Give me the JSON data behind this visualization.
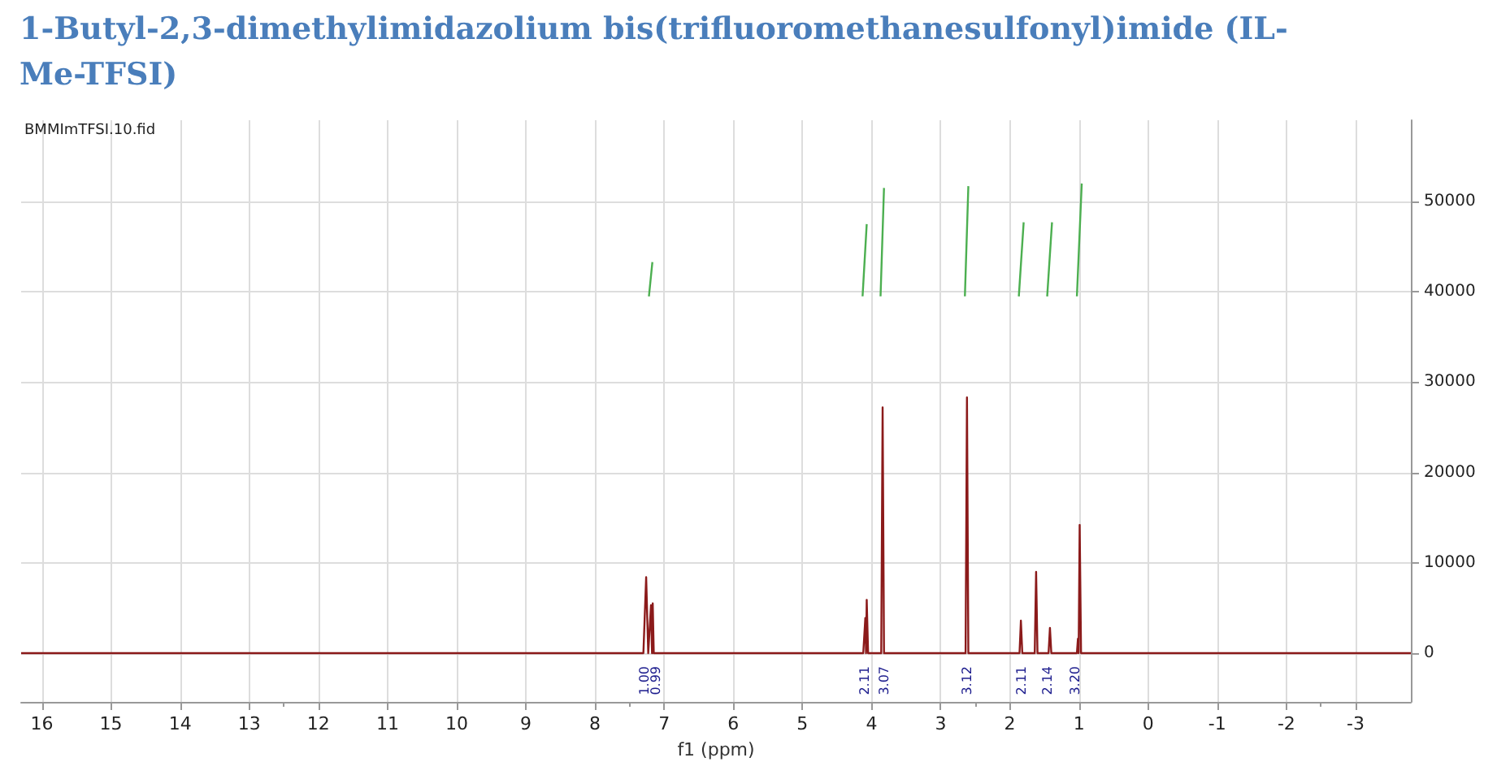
{
  "chart_data": {
    "type": "line",
    "title": "1-Butyl-2,3-dimethylimidazolium bis(trifluoromethanesulfonyl)imide (IL-Me-TFSI)",
    "xlabel": "f1 (ppm)",
    "xlim": [
      16.3,
      -3.8
    ],
    "xticks": [
      16,
      15,
      14,
      13,
      12,
      11,
      10,
      9,
      8,
      7,
      6,
      5,
      4,
      3,
      2,
      1,
      0,
      -1,
      -2,
      -3
    ],
    "ylim": [
      -5400,
      59000
    ],
    "yticks": [
      0,
      10000,
      20000,
      30000,
      40000,
      50000
    ],
    "grid": true,
    "marker": "none",
    "line_style": "solid",
    "series": [
      {
        "color": "#8b1a1a",
        "x": [
          16.3,
          7.3,
          7.26,
          7.23,
          7.19,
          7.175,
          7.165,
          7.15,
          4.12,
          4.09,
          4.08,
          4.07,
          4.05,
          3.86,
          3.84,
          3.82,
          2.64,
          2.62,
          2.6,
          1.86,
          1.84,
          1.82,
          1.64,
          1.62,
          1.6,
          1.44,
          1.42,
          1.4,
          1.03,
          1.015,
          1.005,
          0.99,
          0.97,
          -3.8
        ],
        "values": [
          0,
          0,
          8400,
          0,
          5300,
          0,
          5500,
          0,
          0,
          3900,
          0,
          5900,
          0,
          0,
          27200,
          0,
          0,
          28300,
          0,
          0,
          3600,
          0,
          0,
          9000,
          0,
          0,
          2800,
          0,
          0,
          1600,
          0,
          14200,
          0,
          0
        ]
      },
      {
        "color": "#4caf50",
        "x": [
          7.22,
          7.17,
          7.1,
          4.13,
          4.07,
          4.0,
          3.87,
          3.82,
          3.0,
          2.65,
          2.6,
          2.2,
          1.87,
          1.8,
          1.6,
          1.46,
          1.39,
          1.2,
          1.03,
          0.96
        ],
        "values": [
          39500,
          43300,
          null,
          39500,
          47500,
          null,
          39500,
          51500,
          null,
          39500,
          51700,
          null,
          39500,
          47700,
          null,
          39500,
          47700,
          null,
          39500,
          52000
        ]
      }
    ],
    "annotations": [
      "BMMImTFSI.10.fid",
      {
        "text": "1.00",
        "x": 7.28,
        "y": 0
      },
      {
        "text": "0.99",
        "x": 7.12,
        "y": 0
      },
      {
        "text": "2.11",
        "x": 4.1,
        "y": 0
      },
      {
        "text": "3.07",
        "x": 3.82,
        "y": 0
      },
      {
        "text": "3.12",
        "x": 2.62,
        "y": 0
      },
      {
        "text": "2.11",
        "x": 1.83,
        "y": 0
      },
      {
        "text": "2.14",
        "x": 1.45,
        "y": 0
      },
      {
        "text": "3.20",
        "x": 1.05,
        "y": 0
      }
    ]
  }
}
